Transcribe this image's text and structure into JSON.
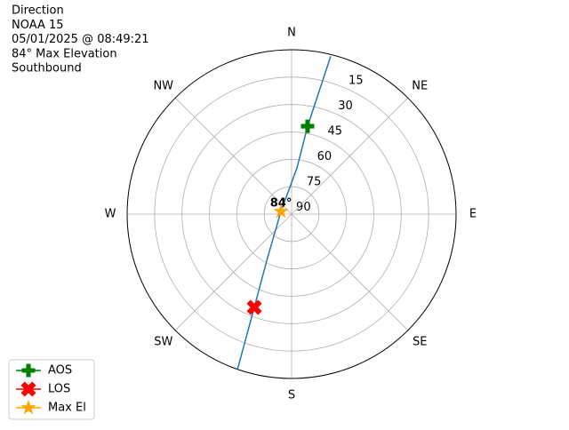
{
  "chart_data": {
    "type": "polar",
    "title_lines": [
      "Direction",
      "NOAA 15",
      "05/01/2025 @ 08:49:21",
      "84° Max Elevation",
      "Southbound"
    ],
    "rlim": [
      90,
      0
    ],
    "rticks": [
      90,
      75,
      60,
      45,
      30,
      15
    ],
    "thetaticks": [
      {
        "value": 0,
        "label": "N"
      },
      {
        "value": 45,
        "label": "NE"
      },
      {
        "value": 90,
        "label": "E"
      },
      {
        "value": 135,
        "label": "SE"
      },
      {
        "value": 180,
        "label": "S"
      },
      {
        "value": 225,
        "label": "SW"
      },
      {
        "value": 270,
        "label": "W"
      },
      {
        "value": 315,
        "label": "NW"
      }
    ],
    "grid": true,
    "track": {
      "color": "#1f77b4",
      "x": [
        13.9,
        10.3,
        6.6,
        284,
        208.9,
        201.8,
        199.2
      ],
      "values": [
        1,
        41.1,
        64.6,
        84,
        62.8,
        35,
        0
      ]
    },
    "series": [
      {
        "name": "AOS",
        "color": "green",
        "marker": "plus",
        "x": [
          10.3
        ],
        "values": [
          41.1
        ]
      },
      {
        "name": "LOS",
        "color": "red",
        "marker": "x",
        "x": [
          201.8
        ],
        "values": [
          35
        ]
      },
      {
        "name": "Max El",
        "color": "orange",
        "marker": "star",
        "x": [
          284
        ],
        "values": [
          84
        ]
      }
    ],
    "annotation": {
      "text": "84°",
      "x": 284,
      "value": 84
    },
    "legend": "lower left"
  }
}
